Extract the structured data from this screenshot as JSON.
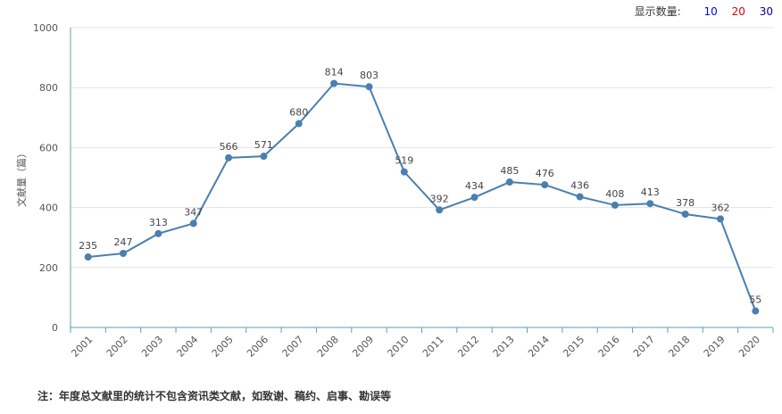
{
  "controls": {
    "label": "显示数量:",
    "options": [
      {
        "text": "10",
        "color": "#0000ff"
      },
      {
        "text": "20",
        "color": "#e00000"
      },
      {
        "text": "30",
        "color": "#000099"
      }
    ]
  },
  "note": "注：年度总文献里的统计不包含资讯类文献，如致谢、稿约、启事、勘误等",
  "chart_data": {
    "type": "line",
    "title": "",
    "xlabel": "",
    "ylabel": "文献量（篇）",
    "ylim": [
      0,
      1000
    ],
    "yticks": [
      0,
      200,
      400,
      600,
      800,
      1000
    ],
    "grid": true,
    "line_color": "#4a7fb0",
    "categories": [
      "2001",
      "2002",
      "2003",
      "2004",
      "2005",
      "2006",
      "2007",
      "2008",
      "2009",
      "2010",
      "2011",
      "2012",
      "2013",
      "2014",
      "2015",
      "2016",
      "2017",
      "2018",
      "2019",
      "2020"
    ],
    "values": [
      235,
      247,
      313,
      347,
      566,
      571,
      680,
      814,
      803,
      519,
      392,
      434,
      485,
      476,
      436,
      408,
      413,
      378,
      362,
      55
    ]
  }
}
